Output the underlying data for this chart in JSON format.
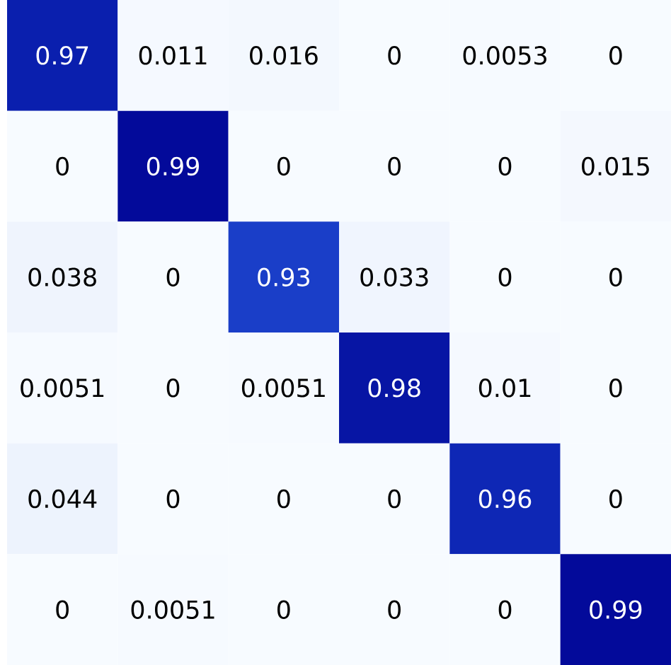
{
  "chart_data": {
    "type": "heatmap",
    "categories": [
      null,
      null,
      null,
      null,
      null,
      null
    ],
    "y_categories": [
      null,
      null,
      null,
      null,
      null,
      null
    ],
    "cells": [
      [
        0.97,
        0.011,
        0.016,
        0,
        0.0053,
        0
      ],
      [
        0,
        0.99,
        0,
        0,
        0,
        0.015
      ],
      [
        0.038,
        0,
        0.93,
        0.033,
        0,
        0
      ],
      [
        0.0051,
        0,
        0.0051,
        0.98,
        0.01,
        0
      ],
      [
        0.044,
        0,
        0,
        0,
        0.96,
        0
      ],
      [
        0,
        0.0051,
        0,
        0,
        0,
        0.99
      ]
    ],
    "data_labels": true
  }
}
